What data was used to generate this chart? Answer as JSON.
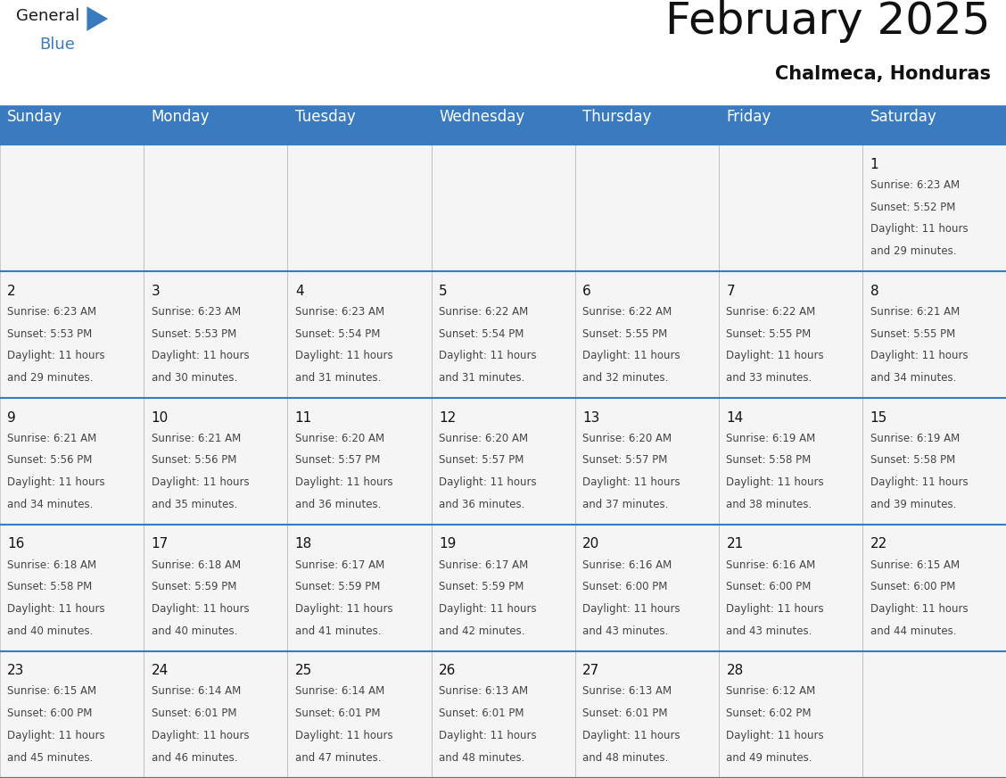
{
  "title": "February 2025",
  "subtitle": "Chalmeca, Honduras",
  "header_bg": "#3a7abf",
  "header_text": "#ffffff",
  "cell_bg": "#f5f5f5",
  "border_color": "#3a7abf",
  "cell_border_color": "#aaaaaa",
  "day_headers": [
    "Sunday",
    "Monday",
    "Tuesday",
    "Wednesday",
    "Thursday",
    "Friday",
    "Saturday"
  ],
  "calendar_data": [
    [
      null,
      null,
      null,
      null,
      null,
      null,
      {
        "day": 1,
        "sunrise": "6:23 AM",
        "sunset": "5:52 PM",
        "daylight": "11 hours and 29 minutes."
      }
    ],
    [
      {
        "day": 2,
        "sunrise": "6:23 AM",
        "sunset": "5:53 PM",
        "daylight": "11 hours and 29 minutes."
      },
      {
        "day": 3,
        "sunrise": "6:23 AM",
        "sunset": "5:53 PM",
        "daylight": "11 hours and 30 minutes."
      },
      {
        "day": 4,
        "sunrise": "6:23 AM",
        "sunset": "5:54 PM",
        "daylight": "11 hours and 31 minutes."
      },
      {
        "day": 5,
        "sunrise": "6:22 AM",
        "sunset": "5:54 PM",
        "daylight": "11 hours and 31 minutes."
      },
      {
        "day": 6,
        "sunrise": "6:22 AM",
        "sunset": "5:55 PM",
        "daylight": "11 hours and 32 minutes."
      },
      {
        "day": 7,
        "sunrise": "6:22 AM",
        "sunset": "5:55 PM",
        "daylight": "11 hours and 33 minutes."
      },
      {
        "day": 8,
        "sunrise": "6:21 AM",
        "sunset": "5:55 PM",
        "daylight": "11 hours and 34 minutes."
      }
    ],
    [
      {
        "day": 9,
        "sunrise": "6:21 AM",
        "sunset": "5:56 PM",
        "daylight": "11 hours and 34 minutes."
      },
      {
        "day": 10,
        "sunrise": "6:21 AM",
        "sunset": "5:56 PM",
        "daylight": "11 hours and 35 minutes."
      },
      {
        "day": 11,
        "sunrise": "6:20 AM",
        "sunset": "5:57 PM",
        "daylight": "11 hours and 36 minutes."
      },
      {
        "day": 12,
        "sunrise": "6:20 AM",
        "sunset": "5:57 PM",
        "daylight": "11 hours and 36 minutes."
      },
      {
        "day": 13,
        "sunrise": "6:20 AM",
        "sunset": "5:57 PM",
        "daylight": "11 hours and 37 minutes."
      },
      {
        "day": 14,
        "sunrise": "6:19 AM",
        "sunset": "5:58 PM",
        "daylight": "11 hours and 38 minutes."
      },
      {
        "day": 15,
        "sunrise": "6:19 AM",
        "sunset": "5:58 PM",
        "daylight": "11 hours and 39 minutes."
      }
    ],
    [
      {
        "day": 16,
        "sunrise": "6:18 AM",
        "sunset": "5:58 PM",
        "daylight": "11 hours and 40 minutes."
      },
      {
        "day": 17,
        "sunrise": "6:18 AM",
        "sunset": "5:59 PM",
        "daylight": "11 hours and 40 minutes."
      },
      {
        "day": 18,
        "sunrise": "6:17 AM",
        "sunset": "5:59 PM",
        "daylight": "11 hours and 41 minutes."
      },
      {
        "day": 19,
        "sunrise": "6:17 AM",
        "sunset": "5:59 PM",
        "daylight": "11 hours and 42 minutes."
      },
      {
        "day": 20,
        "sunrise": "6:16 AM",
        "sunset": "6:00 PM",
        "daylight": "11 hours and 43 minutes."
      },
      {
        "day": 21,
        "sunrise": "6:16 AM",
        "sunset": "6:00 PM",
        "daylight": "11 hours and 43 minutes."
      },
      {
        "day": 22,
        "sunrise": "6:15 AM",
        "sunset": "6:00 PM",
        "daylight": "11 hours and 44 minutes."
      }
    ],
    [
      {
        "day": 23,
        "sunrise": "6:15 AM",
        "sunset": "6:00 PM",
        "daylight": "11 hours and 45 minutes."
      },
      {
        "day": 24,
        "sunrise": "6:14 AM",
        "sunset": "6:01 PM",
        "daylight": "11 hours and 46 minutes."
      },
      {
        "day": 25,
        "sunrise": "6:14 AM",
        "sunset": "6:01 PM",
        "daylight": "11 hours and 47 minutes."
      },
      {
        "day": 26,
        "sunrise": "6:13 AM",
        "sunset": "6:01 PM",
        "daylight": "11 hours and 48 minutes."
      },
      {
        "day": 27,
        "sunrise": "6:13 AM",
        "sunset": "6:01 PM",
        "daylight": "11 hours and 48 minutes."
      },
      {
        "day": 28,
        "sunrise": "6:12 AM",
        "sunset": "6:02 PM",
        "daylight": "11 hours and 49 minutes."
      },
      null
    ]
  ],
  "logo_general_color": "#1a1a1a",
  "logo_blue_color": "#3a7abf",
  "title_fontsize": 36,
  "subtitle_fontsize": 15,
  "header_fontsize": 12,
  "day_num_fontsize": 11,
  "cell_text_fontsize": 8.5
}
